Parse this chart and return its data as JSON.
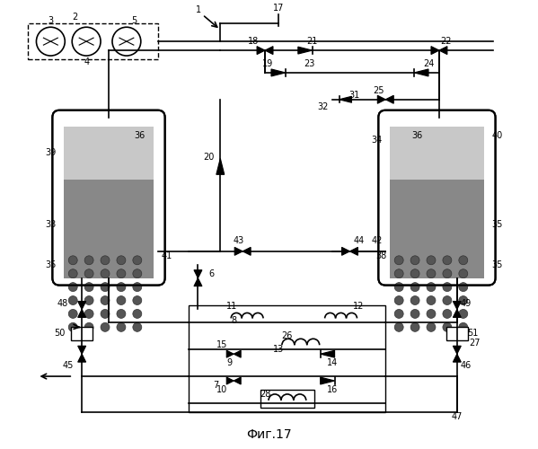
{
  "title": "Фиг.17",
  "bg_color": "#ffffff",
  "line_color": "#000000",
  "figsize": [
    5.99,
    5.0
  ],
  "dpi": 100
}
